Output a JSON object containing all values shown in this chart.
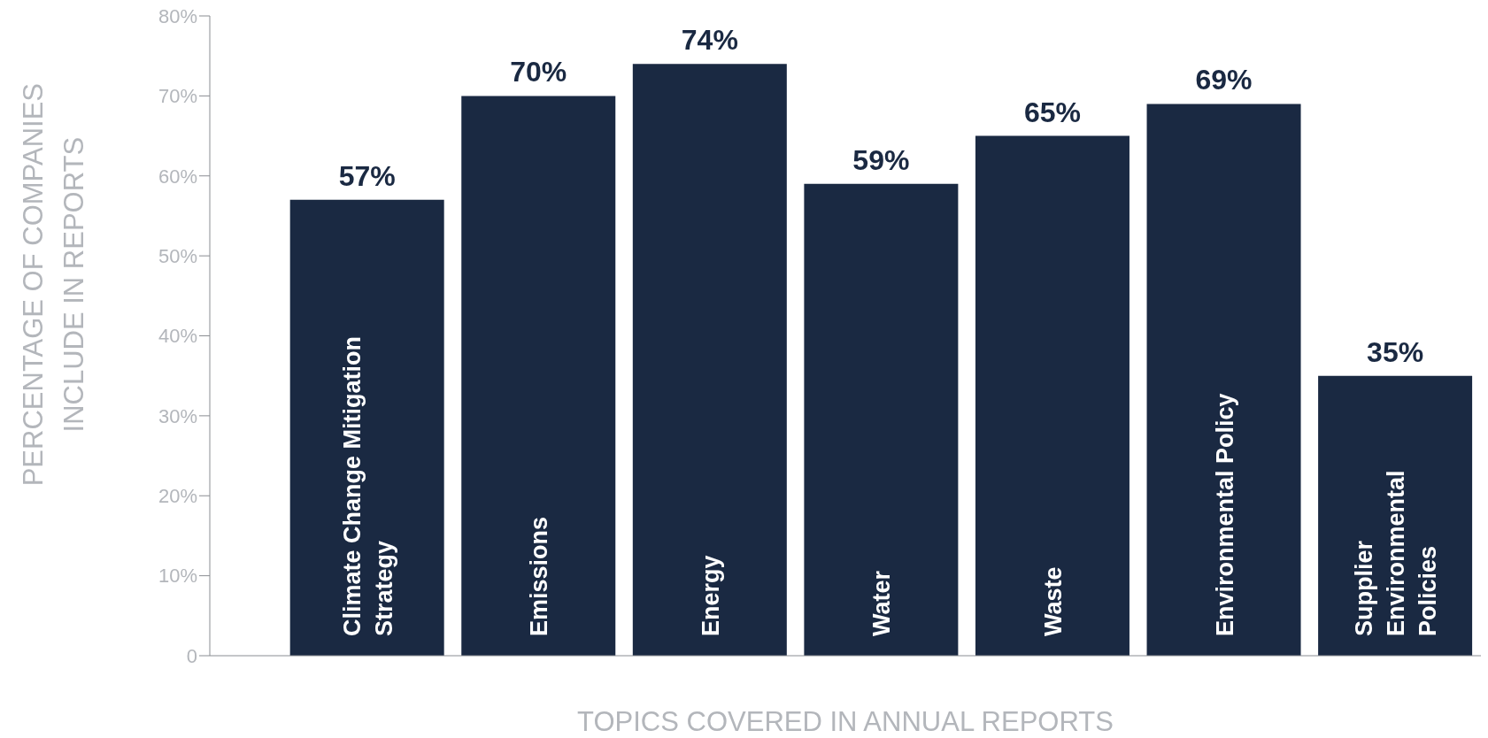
{
  "chart_data": {
    "type": "bar",
    "xlabel": "TOPICS COVERED IN ANNUAL REPORTS",
    "ylabel": "PERCENTAGE OF COMPANIES INCLUDE IN REPORTS",
    "categories": [
      "Climate Change Mitigation Strategy",
      "Emissions",
      "Energy",
      "Water",
      "Waste",
      "Environmental Policy",
      "Supplier Environmental Policies"
    ],
    "values": [
      57,
      70,
      74,
      59,
      65,
      69,
      35
    ],
    "value_labels": [
      "57%",
      "70%",
      "74%",
      "59%",
      "65%",
      "69%",
      "35%"
    ],
    "color": "#1a2942",
    "ylim": [
      0,
      80
    ],
    "yticks": [
      0,
      {
        "value": 10,
        "label": "10%"
      },
      {
        "value": 20,
        "label": "20%"
      },
      {
        "value": 30,
        "label": "30%"
      },
      {
        "value": 40,
        "label": "40%"
      },
      {
        "value": 50,
        "label": "50%"
      },
      {
        "value": 60,
        "label": "60%"
      },
      {
        "value": 70,
        "label": "70%"
      },
      {
        "value": 80,
        "label": "80%"
      }
    ],
    "grid": false,
    "legend": false
  }
}
